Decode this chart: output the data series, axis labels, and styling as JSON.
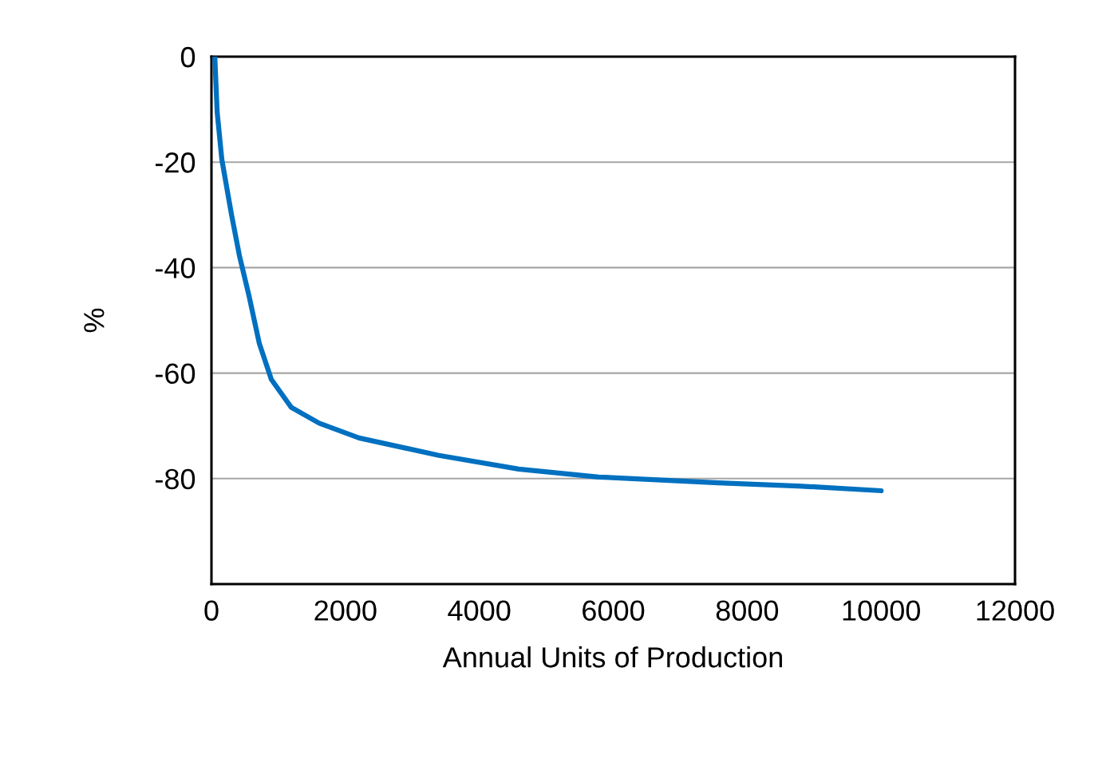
{
  "chart_data": {
    "type": "line",
    "xlabel": "Annual Units of Production",
    "ylabel": "%",
    "x": [
      50,
      85,
      155,
      300,
      417,
      560,
      715,
      894,
      1192,
      1609,
      2205,
      3397,
      4589,
      5781,
      7569,
      8760,
      10000
    ],
    "series": [
      {
        "color": "#0070c0",
        "values": [
          0,
          -10.5,
          -19.5,
          -30,
          -37.7,
          -45.3,
          -54.4,
          -61.2,
          -66.5,
          -69.5,
          -72.3,
          -75.6,
          -78.2,
          -79.7,
          -80.8,
          -81.4,
          -82.3
        ]
      }
    ],
    "xlim": [
      0,
      12000
    ],
    "xticks": [
      0,
      2000,
      4000,
      6000,
      8000,
      10000,
      12000
    ],
    "ylim": [
      -100,
      0
    ],
    "yticks": [
      0,
      -20,
      -40,
      -60,
      -80
    ],
    "grid": "y",
    "legend": false,
    "marker": "none",
    "line_style": "solid"
  }
}
